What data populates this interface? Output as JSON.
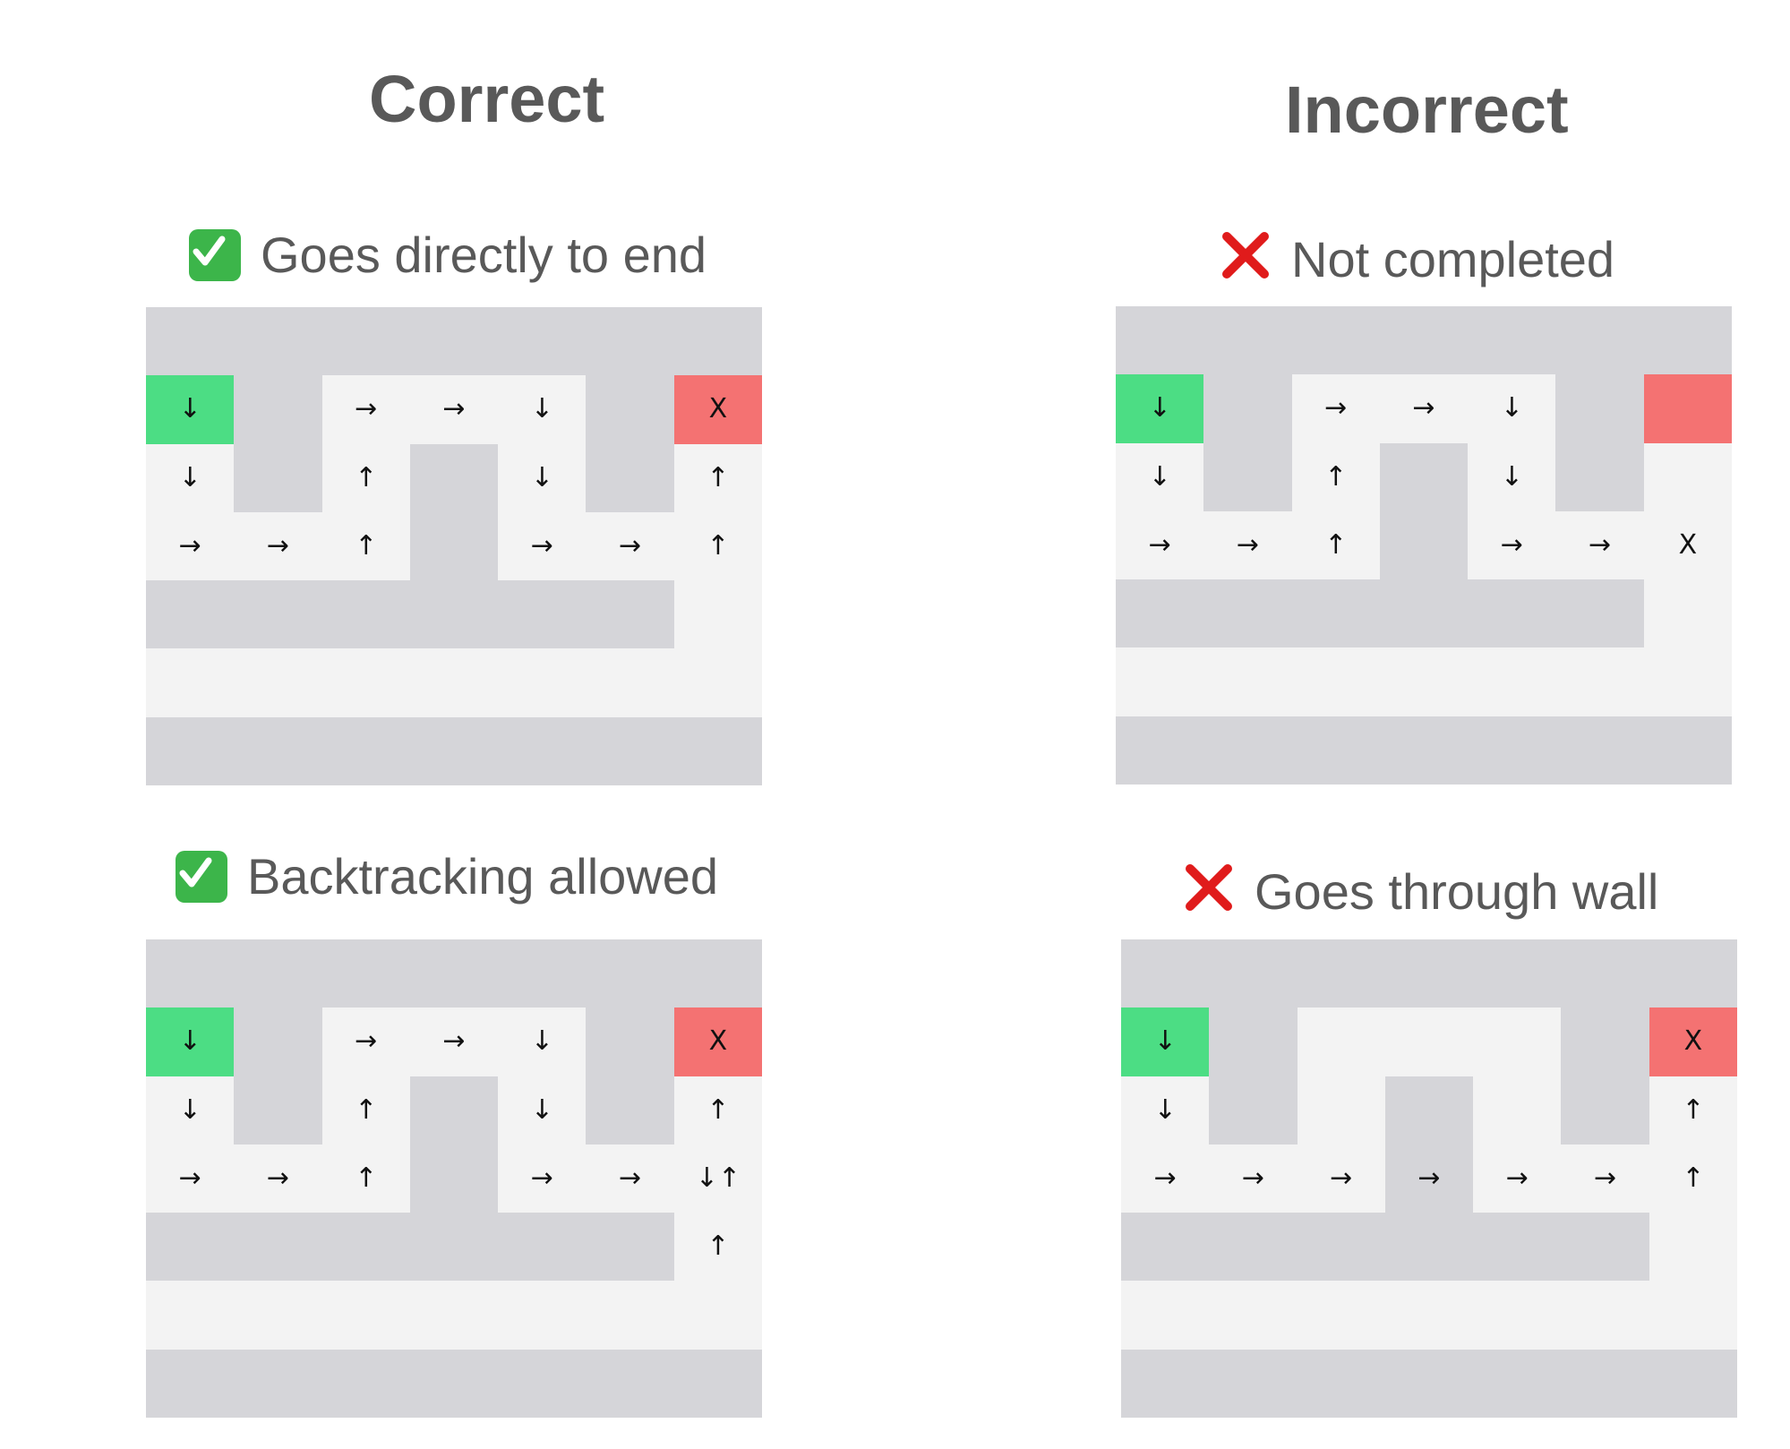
{
  "colors": {
    "wall": "#d5d5d9",
    "open": "#f3f3f3",
    "start": "#4cdd84",
    "end": "#f47272",
    "check": "#3cb54a",
    "cross": "#e01b1b",
    "text": "#595959"
  },
  "columns": {
    "correct": {
      "title": "Correct"
    },
    "incorrect": {
      "title": "Incorrect"
    }
  },
  "panels": [
    {
      "id": "correct-direct",
      "icon": "check-mark-icon",
      "caption": "Goes directly to end",
      "grid": [
        [
          "W",
          "W",
          "W",
          "W",
          "W",
          "W",
          "W"
        ],
        [
          "S",
          "W",
          ".",
          ".",
          ".",
          "W",
          "E"
        ],
        [
          ".",
          "W",
          ".",
          "W",
          ".",
          "W",
          "."
        ],
        [
          ".",
          ".",
          ".",
          "W",
          ".",
          ".",
          "."
        ],
        [
          "W",
          "W",
          "W",
          "W",
          "W",
          "W",
          "."
        ],
        [
          ".",
          ".",
          ".",
          ".",
          ".",
          ".",
          "."
        ],
        [
          "W",
          "W",
          "W",
          "W",
          "W",
          "W",
          "W"
        ]
      ],
      "marks": [
        [
          "",
          "",
          "",
          "",
          "",
          "",
          ""
        ],
        [
          "↓",
          "",
          "→",
          "→",
          "↓",
          "",
          "X"
        ],
        [
          "↓",
          "",
          "↑",
          "",
          "↓",
          "",
          "↑"
        ],
        [
          "→",
          "→",
          "↑",
          "",
          "→",
          "→",
          "↑"
        ],
        [
          "",
          "",
          "",
          "",
          "",
          "",
          ""
        ],
        [
          "",
          "",
          "",
          "",
          "",
          "",
          ""
        ],
        [
          "",
          "",
          "",
          "",
          "",
          "",
          ""
        ]
      ]
    },
    {
      "id": "correct-backtracking",
      "icon": "check-mark-icon",
      "caption": "Backtracking allowed",
      "grid": [
        [
          "W",
          "W",
          "W",
          "W",
          "W",
          "W",
          "W"
        ],
        [
          "S",
          "W",
          ".",
          ".",
          ".",
          "W",
          "E"
        ],
        [
          ".",
          "W",
          ".",
          "W",
          ".",
          "W",
          "."
        ],
        [
          ".",
          ".",
          ".",
          "W",
          ".",
          ".",
          "."
        ],
        [
          "W",
          "W",
          "W",
          "W",
          "W",
          "W",
          "."
        ],
        [
          ".",
          ".",
          ".",
          ".",
          ".",
          ".",
          "."
        ],
        [
          "W",
          "W",
          "W",
          "W",
          "W",
          "W",
          "W"
        ]
      ],
      "marks": [
        [
          "",
          "",
          "",
          "",
          "",
          "",
          ""
        ],
        [
          "↓",
          "",
          "→",
          "→",
          "↓",
          "",
          "X"
        ],
        [
          "↓",
          "",
          "↑",
          "",
          "↓",
          "",
          "↑"
        ],
        [
          "→",
          "→",
          "↑",
          "",
          "→",
          "→",
          "↓↑"
        ],
        [
          "",
          "",
          "",
          "",
          "",
          "",
          "↑"
        ],
        [
          "",
          "",
          "",
          "",
          "",
          "",
          ""
        ],
        [
          "",
          "",
          "",
          "",
          "",
          "",
          ""
        ]
      ]
    },
    {
      "id": "incorrect-not-completed",
      "icon": "cross-mark-icon",
      "caption": "Not completed",
      "grid": [
        [
          "W",
          "W",
          "W",
          "W",
          "W",
          "W",
          "W"
        ],
        [
          "S",
          "W",
          ".",
          ".",
          ".",
          "W",
          "E"
        ],
        [
          ".",
          "W",
          ".",
          "W",
          ".",
          "W",
          "."
        ],
        [
          ".",
          ".",
          ".",
          "W",
          ".",
          ".",
          "."
        ],
        [
          "W",
          "W",
          "W",
          "W",
          "W",
          "W",
          "."
        ],
        [
          ".",
          ".",
          ".",
          ".",
          ".",
          ".",
          "."
        ],
        [
          "W",
          "W",
          "W",
          "W",
          "W",
          "W",
          "W"
        ]
      ],
      "marks": [
        [
          "",
          "",
          "",
          "",
          "",
          "",
          ""
        ],
        [
          "↓",
          "",
          "→",
          "→",
          "↓",
          "",
          ""
        ],
        [
          "↓",
          "",
          "↑",
          "",
          "↓",
          "",
          ""
        ],
        [
          "→",
          "→",
          "↑",
          "",
          "→",
          "→",
          "X"
        ],
        [
          "",
          "",
          "",
          "",
          "",
          "",
          ""
        ],
        [
          "",
          "",
          "",
          "",
          "",
          "",
          ""
        ],
        [
          "",
          "",
          "",
          "",
          "",
          "",
          ""
        ]
      ]
    },
    {
      "id": "incorrect-through-wall",
      "icon": "cross-mark-icon",
      "caption": "Goes through wall",
      "grid": [
        [
          "W",
          "W",
          "W",
          "W",
          "W",
          "W",
          "W"
        ],
        [
          "S",
          "W",
          ".",
          ".",
          ".",
          "W",
          "E"
        ],
        [
          ".",
          "W",
          ".",
          "W",
          ".",
          "W",
          "."
        ],
        [
          ".",
          ".",
          ".",
          "W",
          ".",
          ".",
          "."
        ],
        [
          "W",
          "W",
          "W",
          "W",
          "W",
          "W",
          "."
        ],
        [
          ".",
          ".",
          ".",
          ".",
          ".",
          ".",
          "."
        ],
        [
          "W",
          "W",
          "W",
          "W",
          "W",
          "W",
          "W"
        ]
      ],
      "marks": [
        [
          "",
          "",
          "",
          "",
          "",
          "",
          ""
        ],
        [
          "↓",
          "",
          "",
          "",
          "",
          "",
          "X"
        ],
        [
          "↓",
          "",
          "",
          "",
          "",
          "",
          "↑"
        ],
        [
          "→",
          "→",
          "→",
          "→",
          "→",
          "→",
          "↑"
        ],
        [
          "",
          "",
          "",
          "",
          "",
          "",
          ""
        ],
        [
          "",
          "",
          "",
          "",
          "",
          "",
          ""
        ],
        [
          "",
          "",
          "",
          "",
          "",
          "",
          ""
        ]
      ]
    }
  ]
}
